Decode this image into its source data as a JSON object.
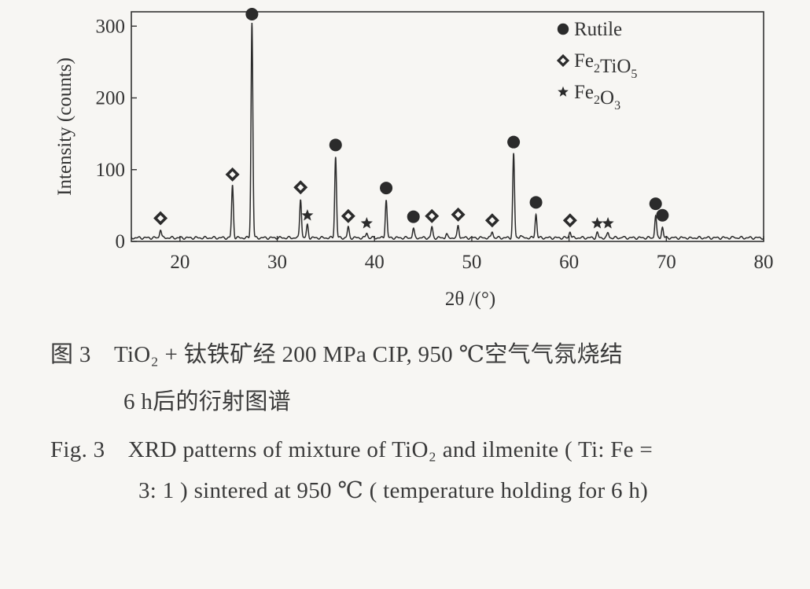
{
  "chart_data": {
    "type": "line",
    "xlabel": "2θ /(°)",
    "ylabel": "Intensity (counts)",
    "xlim": [
      15,
      80
    ],
    "ylim": [
      0,
      320
    ],
    "x_ticks": [
      20,
      30,
      40,
      50,
      60,
      70,
      80
    ],
    "y_ticks": [
      0,
      100,
      200,
      300
    ],
    "background": 5,
    "peaks": [
      {
        "x": 18.0,
        "y": 17,
        "phase": "Fe2TiO5"
      },
      {
        "x": 25.4,
        "y": 78,
        "phase": "Fe2TiO5"
      },
      {
        "x": 27.4,
        "y": 305,
        "phase": "Rutile"
      },
      {
        "x": 32.4,
        "y": 60,
        "phase": "Fe2TiO5"
      },
      {
        "x": 33.1,
        "y": 23,
        "phase": "Fe2O3"
      },
      {
        "x": 36.0,
        "y": 118,
        "phase": "Rutile"
      },
      {
        "x": 37.3,
        "y": 20,
        "phase": "Fe2TiO5"
      },
      {
        "x": 39.2,
        "y": 12,
        "phase": "Fe2O3"
      },
      {
        "x": 41.2,
        "y": 58,
        "phase": "Rutile"
      },
      {
        "x": 44.0,
        "y": 18,
        "phase": "Rutile"
      },
      {
        "x": 45.9,
        "y": 20,
        "phase": "Fe2TiO5"
      },
      {
        "x": 48.6,
        "y": 22,
        "phase": "Fe2TiO5"
      },
      {
        "x": 52.1,
        "y": 14,
        "phase": "Fe2TiO5"
      },
      {
        "x": 54.3,
        "y": 122,
        "phase": "Rutile"
      },
      {
        "x": 56.6,
        "y": 38,
        "phase": "Rutile"
      },
      {
        "x": 60.1,
        "y": 14,
        "phase": "Fe2TiO5"
      },
      {
        "x": 62.9,
        "y": 12,
        "phase": "Fe2O3"
      },
      {
        "x": 64.0,
        "y": 12,
        "phase": "Fe2O3"
      },
      {
        "x": 68.9,
        "y": 36,
        "phase": "Rutile"
      },
      {
        "x": 69.6,
        "y": 20,
        "phase": "Rutile"
      }
    ],
    "minor_peaks": [
      {
        "x": 47.4,
        "y": 10
      },
      {
        "x": 55.0,
        "y": 9
      },
      {
        "x": 65.5,
        "y": 6
      },
      {
        "x": 72.5,
        "y": 4
      },
      {
        "x": 77.0,
        "y": 6
      }
    ],
    "legend": {
      "placement": "top-right",
      "entries": [
        {
          "phase": "Rutile",
          "marker": "filled-circle",
          "label": "Rutile"
        },
        {
          "phase": "Fe2TiO5",
          "marker": "open-diamond",
          "label": "Fe",
          "sub1": "2",
          "mid": "TiO",
          "sub2": "5"
        },
        {
          "phase": "Fe2O3",
          "marker": "star",
          "label": "Fe",
          "sub1": "2",
          "mid": "O",
          "sub2": "3"
        }
      ]
    }
  },
  "caption": {
    "zh_line1": "图 3　TiO₂ + 钛铁矿经 200 MPa CIP, 950 ℃空气气氛烧结",
    "zh_line2": "6 h后的衍射图谱",
    "en_line1": "Fig. 3　XRD patterns of mixture of TiO₂ and ilmenite ( Ti: Fe =",
    "en_line2": "3: 1 ) sintered at 950 ℃ ( temperature holding for 6 h)"
  },
  "colors": {
    "line": "#2b2b2b",
    "marker": "#2b2b2b",
    "background": "#f7f6f3"
  }
}
